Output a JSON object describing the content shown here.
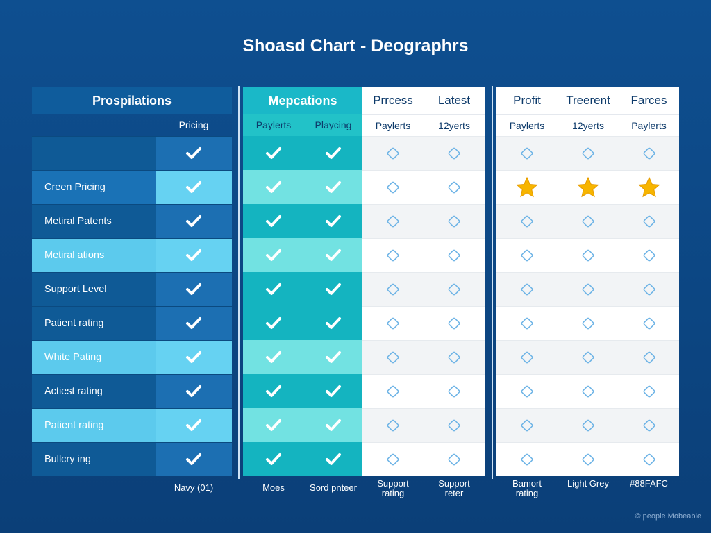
{
  "title": "Shoasd Chart - Deographrs",
  "panels": [
    {
      "header": "Prospilations",
      "subheaders": [
        "Pricing"
      ],
      "rows": [
        "Creen Pricing",
        "Metiral Patents",
        "Metiral ations",
        "Support Level",
        "Patient rating",
        "White Pating",
        "Actiest rating",
        "Patient rating",
        "Bullcry ing"
      ],
      "footer": [
        "Navy (01)"
      ]
    },
    {
      "header": "Mepcations",
      "subheaders": [
        "Paylerts",
        "Playcing"
      ],
      "footer": [
        "Moes",
        "Sord pnteer"
      ]
    },
    {
      "headers": [
        "Prrcess",
        "Latest"
      ],
      "subheaders": [
        "Paylerts",
        "12yerts"
      ],
      "footer": [
        "Support rating",
        "Support reter"
      ]
    },
    {
      "headers": [
        "Profit",
        "Treerent",
        "Farces"
      ],
      "subheaders": [
        "Paylerts",
        "12yerts",
        "Paylerts"
      ],
      "footer": [
        "Bamort rating",
        "Light Grey",
        "#88FAFC"
      ]
    }
  ],
  "watermark": "© people Mobeable"
}
